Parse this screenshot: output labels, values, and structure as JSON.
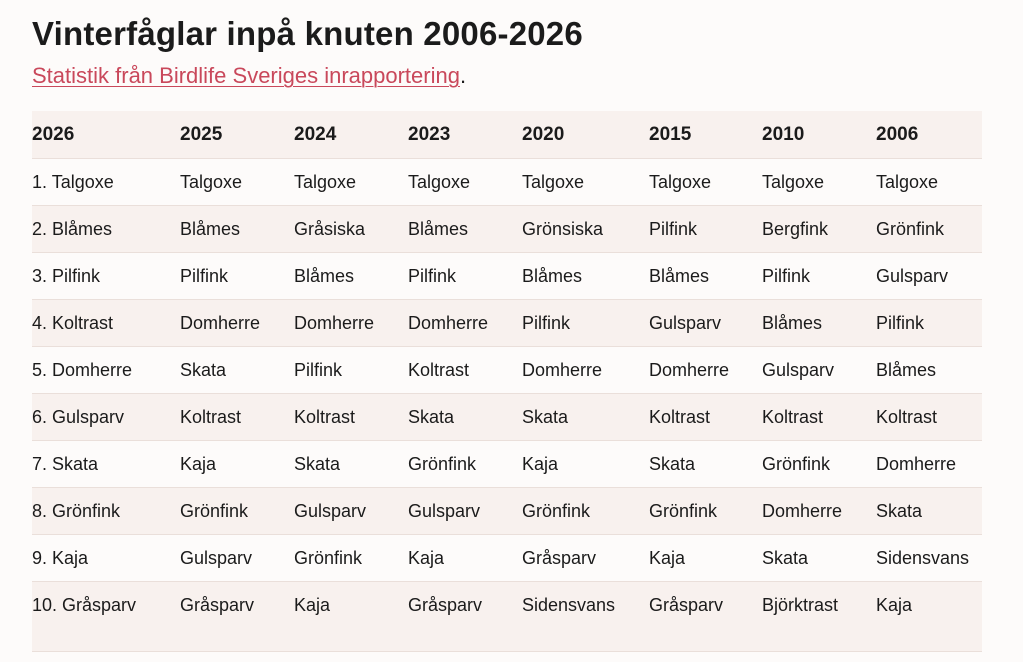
{
  "page": {
    "title": "Vinterfåglar inpå knuten 2006-2026",
    "subtitle_link": "Statistik från Birdlife Sveriges inrapportering",
    "subtitle_suffix": "."
  },
  "table": {
    "headers": [
      "2026",
      "2025",
      "2024",
      "2023",
      "2020",
      "2015",
      "2010",
      "2006"
    ],
    "rows": [
      [
        "1. Talgoxe",
        "Talgoxe",
        "Talgoxe",
        "Talgoxe",
        "Talgoxe",
        "Talgoxe",
        "Talgoxe",
        "Talgoxe"
      ],
      [
        "2. Blåmes",
        "Blåmes",
        "Gråsiska",
        "Blåmes",
        "Grönsiska",
        "Pilfink",
        "Bergfink",
        "Grönfink"
      ],
      [
        "3. Pilfink",
        "Pilfink",
        "Blåmes",
        "Pilfink",
        "Blåmes",
        "Blåmes",
        "Pilfink",
        "Gulsparv"
      ],
      [
        "4. Koltrast",
        "Domherre",
        "Domherre",
        "Domherre",
        "Pilfink",
        "Gulsparv",
        "Blåmes",
        "Pilfink"
      ],
      [
        "5. Domherre",
        "Skata",
        "Pilfink",
        "Koltrast",
        "Domherre",
        "Domherre",
        "Gulsparv",
        "Blåmes"
      ],
      [
        "6. Gulsparv",
        "Koltrast",
        "Koltrast",
        "Skata",
        "Skata",
        "Koltrast",
        "Koltrast",
        "Koltrast"
      ],
      [
        "7. Skata",
        "Kaja",
        "Skata",
        "Grönfink",
        "Kaja",
        "Skata",
        "Grönfink",
        "Domherre"
      ],
      [
        "8. Grönfink",
        "Grönfink",
        "Gulsparv",
        "Gulsparv",
        "Grönfink",
        "Grönfink",
        "Domherre",
        "Skata"
      ],
      [
        "9. Kaja",
        "Gulsparv",
        "Grönfink",
        "Kaja",
        "Gråsparv",
        "Kaja",
        "Skata",
        "Sidensvans"
      ],
      [
        "10. Gråsparv",
        "Gråsparv",
        "Kaja",
        "Gråsparv",
        "Sidensvans",
        "Gråsparv",
        "Björktrast",
        "Kaja"
      ]
    ]
  },
  "colors": {
    "link": "#c9485b",
    "row_alt": "#f8f1ee",
    "background": "#fdfbfa",
    "text": "#1b1b1b"
  }
}
